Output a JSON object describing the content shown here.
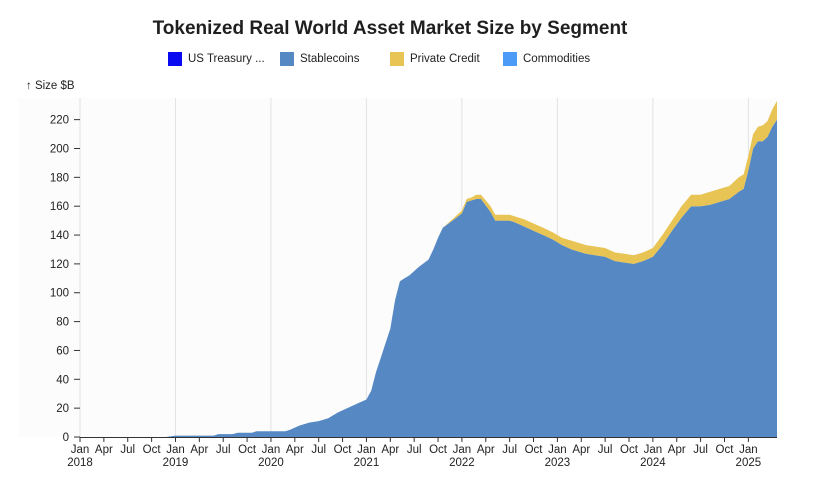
{
  "chart_data": {
    "type": "area",
    "title": "Tokenized Real World Asset Market Size by Segment",
    "ylabel": "↑ Size $B",
    "ylim": [
      0,
      235
    ],
    "yticks": [
      0,
      20,
      40,
      60,
      80,
      100,
      120,
      140,
      160,
      180,
      200,
      220
    ],
    "xlim": [
      2018.0,
      2025.3
    ],
    "xticks": [
      {
        "t": 2018.0,
        "label": "Jan",
        "year": "2018"
      },
      {
        "t": 2018.25,
        "label": "Apr",
        "year": ""
      },
      {
        "t": 2018.5,
        "label": "Jul",
        "year": ""
      },
      {
        "t": 2018.75,
        "label": "Oct",
        "year": ""
      },
      {
        "t": 2019.0,
        "label": "Jan",
        "year": "2019"
      },
      {
        "t": 2019.25,
        "label": "Apr",
        "year": ""
      },
      {
        "t": 2019.5,
        "label": "Jul",
        "year": ""
      },
      {
        "t": 2019.75,
        "label": "Oct",
        "year": ""
      },
      {
        "t": 2020.0,
        "label": "Jan",
        "year": "2020"
      },
      {
        "t": 2020.25,
        "label": "Apr",
        "year": ""
      },
      {
        "t": 2020.5,
        "label": "Jul",
        "year": ""
      },
      {
        "t": 2020.75,
        "label": "Oct",
        "year": ""
      },
      {
        "t": 2021.0,
        "label": "Jan",
        "year": "2021"
      },
      {
        "t": 2021.25,
        "label": "Apr",
        "year": ""
      },
      {
        "t": 2021.5,
        "label": "Jul",
        "year": ""
      },
      {
        "t": 2021.75,
        "label": "Oct",
        "year": ""
      },
      {
        "t": 2022.0,
        "label": "Jan",
        "year": "2022"
      },
      {
        "t": 2022.25,
        "label": "Apr",
        "year": ""
      },
      {
        "t": 2022.5,
        "label": "Jul",
        "year": ""
      },
      {
        "t": 2022.75,
        "label": "Oct",
        "year": ""
      },
      {
        "t": 2023.0,
        "label": "Jan",
        "year": "2023"
      },
      {
        "t": 2023.25,
        "label": "Apr",
        "year": ""
      },
      {
        "t": 2023.5,
        "label": "Jul",
        "year": ""
      },
      {
        "t": 2023.75,
        "label": "Oct",
        "year": ""
      },
      {
        "t": 2024.0,
        "label": "Jan",
        "year": "2024"
      },
      {
        "t": 2024.25,
        "label": "Apr",
        "year": ""
      },
      {
        "t": 2024.5,
        "label": "Jul",
        "year": ""
      },
      {
        "t": 2024.75,
        "label": "Oct",
        "year": ""
      },
      {
        "t": 2025.0,
        "label": "Jan",
        "year": "2025"
      }
    ],
    "x": [
      2018.0,
      2018.9,
      2019.0,
      2019.4,
      2019.45,
      2019.6,
      2019.65,
      2019.8,
      2019.85,
      2020.0,
      2020.15,
      2020.2,
      2020.3,
      2020.4,
      2020.5,
      2020.6,
      2020.7,
      2020.8,
      2020.9,
      2021.0,
      2021.05,
      2021.1,
      2021.15,
      2021.2,
      2021.25,
      2021.3,
      2021.35,
      2021.4,
      2021.45,
      2021.55,
      2021.65,
      2021.7,
      2021.75,
      2021.8,
      2021.9,
      2022.0,
      2022.05,
      2022.1,
      2022.15,
      2022.2,
      2022.3,
      2022.35,
      2022.4,
      2022.45,
      2022.5,
      2022.55,
      2022.65,
      2022.75,
      2022.85,
      2022.95,
      2023.05,
      2023.15,
      2023.3,
      2023.5,
      2023.6,
      2023.7,
      2023.8,
      2023.9,
      2024.0,
      2024.1,
      2024.2,
      2024.3,
      2024.4,
      2024.5,
      2024.6,
      2024.7,
      2024.8,
      2024.9,
      2024.95,
      2025.0,
      2025.05,
      2025.1,
      2025.15,
      2025.2,
      2025.25,
      2025.3
    ],
    "series": [
      {
        "name": "US Treasury ...",
        "color": "#0a0af0",
        "values": [
          0,
          0,
          0,
          0,
          0,
          0,
          0,
          0,
          0,
          0,
          0,
          0,
          0,
          0,
          0,
          0,
          0,
          0,
          0,
          0,
          0,
          0,
          0,
          0,
          0,
          0,
          0,
          0,
          0,
          0,
          0,
          0,
          0,
          0,
          0,
          0,
          0,
          0,
          0,
          0,
          0,
          0,
          0,
          0,
          0,
          0,
          0,
          0,
          0,
          0,
          0,
          0,
          0,
          0,
          0,
          0,
          0,
          0,
          0,
          0,
          0,
          0,
          0,
          0,
          0,
          0,
          0,
          0,
          0,
          0,
          0,
          0,
          0,
          0,
          0,
          0
        ]
      },
      {
        "name": "Stablecoins",
        "color": "#5689c4",
        "values": [
          0,
          0,
          1,
          1,
          2,
          2,
          3,
          3,
          4,
          4,
          4,
          5,
          8,
          10,
          11,
          13,
          17,
          20,
          23,
          26,
          32,
          45,
          55,
          65,
          75,
          95,
          108,
          110,
          112,
          118,
          123,
          130,
          138,
          145,
          150,
          155,
          163,
          164,
          165,
          165,
          156,
          150,
          150,
          150,
          150,
          149,
          146,
          143,
          140,
          137,
          133,
          130,
          127,
          125,
          122,
          121,
          120,
          122,
          125,
          133,
          143,
          152,
          160,
          160,
          161,
          163,
          165,
          170,
          172,
          185,
          200,
          205,
          205,
          208,
          215,
          220
        ]
      },
      {
        "name": "Private Credit",
        "color": "#e8c454",
        "values": [
          0,
          0,
          0,
          0,
          0,
          0,
          0,
          0,
          0,
          0,
          0,
          0,
          0,
          0,
          0,
          0,
          0,
          0,
          0,
          0,
          0,
          0,
          0,
          0,
          0,
          0,
          0,
          0,
          0,
          0,
          0,
          0,
          0,
          0,
          1,
          2,
          2,
          2,
          3,
          3,
          4,
          4,
          4,
          4,
          4,
          4,
          5,
          5,
          5,
          5,
          5,
          6,
          6,
          6,
          6,
          6,
          6,
          6,
          6,
          7,
          7,
          8,
          8,
          8,
          9,
          9,
          9,
          10,
          10,
          10,
          10,
          10,
          11,
          11,
          12,
          13
        ]
      },
      {
        "name": "Commodities",
        "color": "#4b9bf7",
        "values": [
          0,
          0,
          0,
          0,
          0,
          0,
          0,
          0,
          0,
          0,
          0,
          0,
          0,
          0,
          0,
          0,
          0,
          0,
          0,
          0,
          0,
          0,
          0,
          0,
          0,
          0,
          0,
          0,
          0,
          0,
          0,
          0,
          0,
          0,
          0,
          0,
          0,
          0,
          0,
          0,
          0,
          0,
          0,
          0,
          0,
          0,
          0,
          0,
          0,
          0,
          0,
          0,
          0,
          0,
          0,
          0,
          0,
          0,
          0,
          0,
          0,
          0,
          0,
          0,
          0,
          0,
          0,
          0,
          0,
          0,
          0,
          0,
          0,
          0,
          0,
          0
        ]
      }
    ],
    "grid": "vertical-at-years",
    "legend": "top"
  }
}
